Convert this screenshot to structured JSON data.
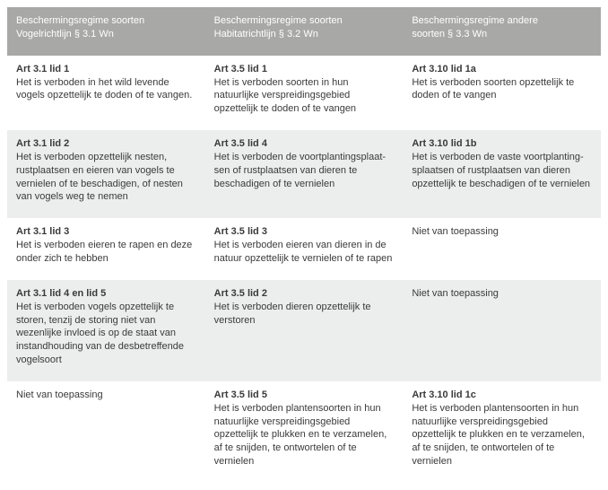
{
  "table": {
    "columns": [
      {
        "line1": "Beschermingsregime soorten",
        "line2": "Vogelrichtlijn § 3.1 Wn"
      },
      {
        "line1": "Beschermingsregime soorten",
        "line2": "Habitatrichtlijn § 3.2 Wn"
      },
      {
        "line1": "Beschermingsregime andere",
        "line2": "soorten § 3.3 Wn"
      }
    ],
    "rows": [
      [
        {
          "art": "Art 3.1 lid 1",
          "desc": "Het is verboden in het wild levende vogels opzettelijk te doden of te vangen."
        },
        {
          "art": "Art 3.5 lid 1",
          "desc": "Het is verboden soorten in hun natuurlijke verspreidingsgebied opzettelijk te doden of te vangen"
        },
        {
          "art": "Art 3.10 lid 1a",
          "desc": "Het is verboden soorten opzettelijk te doden of te vangen"
        }
      ],
      [
        {
          "art": "Art 3.1 lid 2",
          "desc": "Het is verboden opzettelijk nesten, rustplaatsen en eieren van vogels te vernielen of te beschadigen, of nesten van vogels weg te nemen"
        },
        {
          "art": "Art 3.5 lid 4",
          "desc": "Het is verboden de voortplantingsplaat-sen of rustplaatsen van dieren te beschadigen of te vernielen"
        },
        {
          "art": "Art 3.10 lid 1b",
          "desc": "Het is verboden de vaste voortplanting-splaatsen of rustplaatsen van dieren opzettelijk te beschadigen of te vernielen"
        }
      ],
      [
        {
          "art": "Art 3.1 lid 3",
          "desc": "Het is verboden eieren te rapen en deze onder zich te hebben"
        },
        {
          "art": "Art 3.5 lid 3",
          "desc": "Het is verboden eieren van dieren in de natuur opzettelijk te vernielen of te rapen"
        },
        {
          "na": "Niet van toepassing"
        }
      ],
      [
        {
          "art": "Art 3.1 lid 4 en lid 5",
          "desc": "Het is verboden vogels opzettelijk te storen, tenzij de storing niet van wezenlijke invloed is op de staat van instandhouding van de desbetreffende vogelsoort"
        },
        {
          "art": "Art 3.5 lid 2",
          "desc": "Het is verboden dieren opzettelijk te verstoren"
        },
        {
          "na": "Niet van toepassing"
        }
      ],
      [
        {
          "na": "Niet van toepassing"
        },
        {
          "art": "Art 3.5 lid 5",
          "desc": "Het is verboden plantensoorten  in hun natuurlijke verspreidingsgebied opzettelijk te plukken en te verzamelen, af te snijden, te ontwortelen of te vernielen"
        },
        {
          "art": "Art 3.10 lid 1c",
          "desc": "Het is verboden plantensoorten  in hun natuurlijke verspreidingsgebied opzettelijk te plukken en te verzamelen, af te snijden, te ontwortelen of te vernielen"
        }
      ]
    ]
  }
}
